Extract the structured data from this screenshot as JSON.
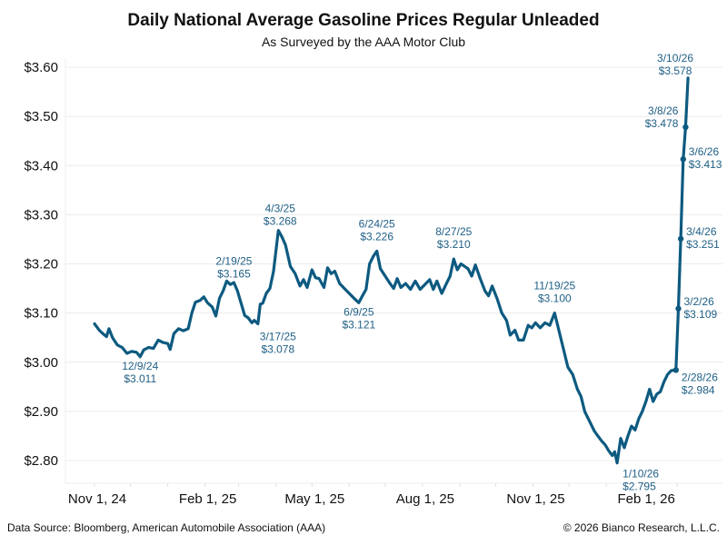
{
  "chart_data": {
    "type": "line",
    "title": "Daily National Average Gasoline Prices Regular Unleaded",
    "subtitle": "As Surveyed by the AAA Motor Club",
    "xlabel": "",
    "ylabel": "",
    "ylim": [
      2.78,
      3.62
    ],
    "yticks": [
      2.8,
      2.9,
      3.0,
      3.1,
      3.2,
      3.3,
      3.4,
      3.5,
      3.6
    ],
    "ytick_labels": [
      "$2.80",
      "$2.90",
      "$3.00",
      "$3.10",
      "$3.20",
      "$3.30",
      "$3.40",
      "$3.50",
      "$3.60"
    ],
    "xticks": [
      {
        "date": "2024-11-01",
        "label": "Nov 1, 24"
      },
      {
        "date": "2025-02-01",
        "label": "Feb 1, 25"
      },
      {
        "date": "2025-05-01",
        "label": "May 1, 25"
      },
      {
        "date": "2025-08-01",
        "label": "Aug 1, 25"
      },
      {
        "date": "2025-11-01",
        "label": "Nov 1, 25"
      },
      {
        "date": "2026-02-01",
        "label": "Feb 1, 26"
      }
    ],
    "grid": true,
    "line_color": "#0d5a80",
    "series": [
      {
        "name": "Regular Unleaded",
        "points": [
          [
            "2024-11-01",
            3.078
          ],
          [
            "2024-11-05",
            3.065
          ],
          [
            "2024-11-08",
            3.058
          ],
          [
            "2024-11-11",
            3.052
          ],
          [
            "2024-11-13",
            3.068
          ],
          [
            "2024-11-16",
            3.05
          ],
          [
            "2024-11-20",
            3.035
          ],
          [
            "2024-11-24",
            3.03
          ],
          [
            "2024-11-28",
            3.018
          ],
          [
            "2024-12-02",
            3.022
          ],
          [
            "2024-12-06",
            3.02
          ],
          [
            "2024-12-09",
            3.011
          ],
          [
            "2024-12-12",
            3.025
          ],
          [
            "2024-12-16",
            3.03
          ],
          [
            "2024-12-20",
            3.028
          ],
          [
            "2024-12-24",
            3.045
          ],
          [
            "2024-12-28",
            3.04
          ],
          [
            "2025-01-01",
            3.038
          ],
          [
            "2025-01-03",
            3.026
          ],
          [
            "2025-01-06",
            3.058
          ],
          [
            "2025-01-10",
            3.068
          ],
          [
            "2025-01-14",
            3.064
          ],
          [
            "2025-01-18",
            3.068
          ],
          [
            "2025-01-21",
            3.1
          ],
          [
            "2025-01-24",
            3.122
          ],
          [
            "2025-01-28",
            3.126
          ],
          [
            "2025-01-31",
            3.133
          ],
          [
            "2025-02-03",
            3.121
          ],
          [
            "2025-02-07",
            3.112
          ],
          [
            "2025-02-10",
            3.094
          ],
          [
            "2025-02-13",
            3.13
          ],
          [
            "2025-02-16",
            3.145
          ],
          [
            "2025-02-19",
            3.165
          ],
          [
            "2025-02-22",
            3.158
          ],
          [
            "2025-02-25",
            3.162
          ],
          [
            "2025-02-28",
            3.145
          ],
          [
            "2025-03-03",
            3.12
          ],
          [
            "2025-03-06",
            3.095
          ],
          [
            "2025-03-09",
            3.09
          ],
          [
            "2025-03-12",
            3.08
          ],
          [
            "2025-03-14",
            3.085
          ],
          [
            "2025-03-17",
            3.078
          ],
          [
            "2025-03-19",
            3.118
          ],
          [
            "2025-03-21",
            3.12
          ],
          [
            "2025-03-24",
            3.14
          ],
          [
            "2025-03-27",
            3.15
          ],
          [
            "2025-03-30",
            3.185
          ],
          [
            "2025-04-03",
            3.268
          ],
          [
            "2025-04-06",
            3.255
          ],
          [
            "2025-04-09",
            3.238
          ],
          [
            "2025-04-13",
            3.195
          ],
          [
            "2025-04-17",
            3.18
          ],
          [
            "2025-04-21",
            3.155
          ],
          [
            "2025-04-24",
            3.168
          ],
          [
            "2025-04-27",
            3.152
          ],
          [
            "2025-05-01",
            3.188
          ],
          [
            "2025-05-04",
            3.172
          ],
          [
            "2025-05-07",
            3.17
          ],
          [
            "2025-05-11",
            3.152
          ],
          [
            "2025-05-14",
            3.192
          ],
          [
            "2025-05-17",
            3.18
          ],
          [
            "2025-05-20",
            3.185
          ],
          [
            "2025-05-24",
            3.16
          ],
          [
            "2025-05-28",
            3.15
          ],
          [
            "2025-06-01",
            3.14
          ],
          [
            "2025-06-05",
            3.13
          ],
          [
            "2025-06-09",
            3.121
          ],
          [
            "2025-06-12",
            3.135
          ],
          [
            "2025-06-15",
            3.148
          ],
          [
            "2025-06-18",
            3.2
          ],
          [
            "2025-06-21",
            3.215
          ],
          [
            "2025-06-24",
            3.226
          ],
          [
            "2025-06-27",
            3.19
          ],
          [
            "2025-07-01",
            3.175
          ],
          [
            "2025-07-05",
            3.16
          ],
          [
            "2025-07-08",
            3.15
          ],
          [
            "2025-07-11",
            3.17
          ],
          [
            "2025-07-14",
            3.152
          ],
          [
            "2025-07-18",
            3.16
          ],
          [
            "2025-07-22",
            3.148
          ],
          [
            "2025-07-26",
            3.165
          ],
          [
            "2025-07-30",
            3.148
          ],
          [
            "2025-08-03",
            3.158
          ],
          [
            "2025-08-07",
            3.168
          ],
          [
            "2025-08-10",
            3.148
          ],
          [
            "2025-08-13",
            3.165
          ],
          [
            "2025-08-17",
            3.14
          ],
          [
            "2025-08-21",
            3.16
          ],
          [
            "2025-08-24",
            3.175
          ],
          [
            "2025-08-27",
            3.21
          ],
          [
            "2025-08-30",
            3.188
          ],
          [
            "2025-09-02",
            3.2
          ],
          [
            "2025-09-05",
            3.195
          ],
          [
            "2025-09-08",
            3.19
          ],
          [
            "2025-09-11",
            3.175
          ],
          [
            "2025-09-14",
            3.198
          ],
          [
            "2025-09-18",
            3.17
          ],
          [
            "2025-09-22",
            3.145
          ],
          [
            "2025-09-25",
            3.135
          ],
          [
            "2025-09-28",
            3.155
          ],
          [
            "2025-10-02",
            3.13
          ],
          [
            "2025-10-06",
            3.1
          ],
          [
            "2025-10-10",
            3.085
          ],
          [
            "2025-10-13",
            3.055
          ],
          [
            "2025-10-17",
            3.065
          ],
          [
            "2025-10-20",
            3.045
          ],
          [
            "2025-10-24",
            3.045
          ],
          [
            "2025-10-28",
            3.075
          ],
          [
            "2025-10-31",
            3.07
          ],
          [
            "2025-11-03",
            3.08
          ],
          [
            "2025-11-07",
            3.07
          ],
          [
            "2025-11-11",
            3.08
          ],
          [
            "2025-11-15",
            3.075
          ],
          [
            "2025-11-19",
            3.1
          ],
          [
            "2025-11-22",
            3.07
          ],
          [
            "2025-11-26",
            3.03
          ],
          [
            "2025-11-30",
            2.99
          ],
          [
            "2025-12-04",
            2.975
          ],
          [
            "2025-12-08",
            2.945
          ],
          [
            "2025-12-11",
            2.93
          ],
          [
            "2025-12-14",
            2.9
          ],
          [
            "2025-12-18",
            2.88
          ],
          [
            "2025-12-22",
            2.86
          ],
          [
            "2025-12-25",
            2.85
          ],
          [
            "2025-12-28",
            2.84
          ],
          [
            "2025-12-31",
            2.832
          ],
          [
            "2026-01-03",
            2.82
          ],
          [
            "2026-01-06",
            2.81
          ],
          [
            "2026-01-08",
            2.818
          ],
          [
            "2026-01-10",
            2.795
          ],
          [
            "2026-01-13",
            2.845
          ],
          [
            "2026-01-16",
            2.826
          ],
          [
            "2026-01-19",
            2.85
          ],
          [
            "2026-01-22",
            2.87
          ],
          [
            "2026-01-25",
            2.862
          ],
          [
            "2026-01-28",
            2.885
          ],
          [
            "2026-01-31",
            2.9
          ],
          [
            "2026-02-03",
            2.92
          ],
          [
            "2026-02-06",
            2.945
          ],
          [
            "2026-02-09",
            2.92
          ],
          [
            "2026-02-12",
            2.935
          ],
          [
            "2026-02-15",
            2.94
          ],
          [
            "2026-02-18",
            2.96
          ],
          [
            "2026-02-21",
            2.975
          ],
          [
            "2026-02-24",
            2.983
          ],
          [
            "2026-02-28",
            2.984
          ],
          [
            "2026-03-02",
            3.109
          ],
          [
            "2026-03-04",
            3.251
          ],
          [
            "2026-03-06",
            3.413
          ],
          [
            "2026-03-08",
            3.478
          ],
          [
            "2026-03-10",
            3.578
          ]
        ]
      }
    ],
    "annotations": [
      {
        "date": "2024-12-09",
        "value": 3.011,
        "label_date": "12/9/24",
        "label_value": "$3.011",
        "position": "below"
      },
      {
        "date": "2025-02-19",
        "value": 3.165,
        "label_date": "2/19/25",
        "label_value": "$3.165",
        "position": "above"
      },
      {
        "date": "2025-03-17",
        "value": 3.078,
        "label_date": "3/17/25",
        "label_value": "$3.078",
        "position": "below-right"
      },
      {
        "date": "2025-04-03",
        "value": 3.268,
        "label_date": "4/3/25",
        "label_value": "$3.268",
        "position": "above-left"
      },
      {
        "date": "2025-06-09",
        "value": 3.121,
        "label_date": "6/9/25",
        "label_value": "$3.121",
        "position": "below"
      },
      {
        "date": "2025-06-24",
        "value": 3.226,
        "label_date": "6/24/25",
        "label_value": "$3.226",
        "position": "above"
      },
      {
        "date": "2025-08-27",
        "value": 3.21,
        "label_date": "8/27/25",
        "label_value": "$3.210",
        "position": "above"
      },
      {
        "date": "2025-11-19",
        "value": 3.1,
        "label_date": "11/19/25",
        "label_value": "$3.100",
        "position": "above"
      },
      {
        "date": "2026-01-10",
        "value": 2.795,
        "label_date": "1/10/26",
        "label_value": "$2.795",
        "position": "right"
      },
      {
        "date": "2026-02-28",
        "value": 2.984,
        "label_date": "2/28/26",
        "label_value": "$2.984",
        "position": "right"
      },
      {
        "date": "2026-03-02",
        "value": 3.109,
        "label_date": "3/2/26",
        "label_value": "$3.109",
        "position": "right"
      },
      {
        "date": "2026-03-04",
        "value": 3.251,
        "label_date": "3/4/26",
        "label_value": "$3.251",
        "position": "right"
      },
      {
        "date": "2026-03-06",
        "value": 3.413,
        "label_date": "3/6/26",
        "label_value": "$3.413",
        "position": "right"
      },
      {
        "date": "2026-03-08",
        "value": 3.478,
        "label_date": "3/8/26",
        "label_value": "$3.478",
        "position": "left"
      },
      {
        "date": "2026-03-10",
        "value": 3.578,
        "label_date": "3/10/26",
        "label_value": "$3.578",
        "position": "above-left"
      }
    ]
  },
  "footer": {
    "source": "Data Source: Bloomberg, American Automobile Association (AAA)",
    "copyright": "© 2026 Bianco Research, L.L.C."
  }
}
